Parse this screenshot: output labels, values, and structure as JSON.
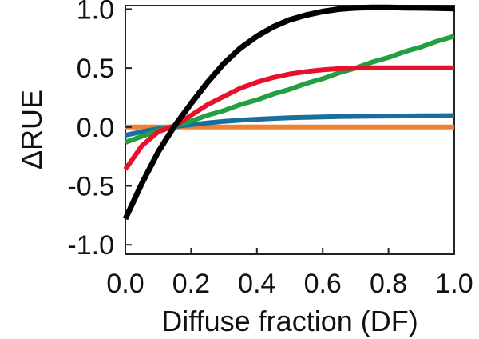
{
  "chart_data": {
    "type": "line",
    "xlabel": "Diffuse fraction (DF)",
    "ylabel": "ΔRUE",
    "xlim": [
      0,
      1
    ],
    "ylim": [
      -1.08,
      1.03
    ],
    "grid": false,
    "x_ticks": [
      "0.0",
      "0.2",
      "0.4",
      "0.6",
      "0.8",
      "1.0"
    ],
    "y_ticks": [
      "1.0",
      "0.5",
      "0.0",
      "-0.5",
      "-1.0"
    ],
    "x": [
      0.0,
      0.05,
      0.1,
      0.15,
      0.2,
      0.25,
      0.3,
      0.35,
      0.4,
      0.45,
      0.5,
      0.55,
      0.6,
      0.65,
      0.7,
      0.75,
      0.8,
      0.85,
      0.9,
      0.95,
      1.0
    ],
    "series": [
      {
        "color": "#f08030",
        "values": [
          0.0,
          0.0,
          0.0,
          0.0,
          0.0,
          0.0,
          0.0,
          0.0,
          0.0,
          0.0,
          0.0,
          0.0,
          0.0,
          0.0,
          0.0,
          0.0,
          0.0,
          0.0,
          0.0,
          0.0,
          0.0
        ]
      },
      {
        "color": "#1a6e9e",
        "values": [
          -0.07,
          -0.04,
          -0.015,
          0.005,
          0.02,
          0.035,
          0.048,
          0.058,
          0.066,
          0.073,
          0.078,
          0.082,
          0.085,
          0.088,
          0.09,
          0.092,
          0.093,
          0.094,
          0.095,
          0.096,
          0.097
        ]
      },
      {
        "color": "#22a040",
        "values": [
          -0.13,
          -0.08,
          -0.03,
          0.01,
          0.05,
          0.1,
          0.14,
          0.19,
          0.23,
          0.28,
          0.32,
          0.37,
          0.41,
          0.46,
          0.5,
          0.55,
          0.59,
          0.64,
          0.68,
          0.73,
          0.77
        ]
      },
      {
        "color": "#e8102a",
        "values": [
          -0.36,
          -0.16,
          -0.04,
          0.01,
          0.1,
          0.19,
          0.26,
          0.33,
          0.38,
          0.42,
          0.45,
          0.47,
          0.485,
          0.495,
          0.5,
          0.502,
          0.503,
          0.503,
          0.503,
          0.503,
          0.503
        ]
      },
      {
        "color": "#000000",
        "values": [
          -0.78,
          -0.48,
          -0.21,
          0.01,
          0.2,
          0.38,
          0.54,
          0.67,
          0.77,
          0.85,
          0.91,
          0.95,
          0.98,
          1.0,
          1.01,
          1.015,
          1.015,
          1.012,
          1.01,
          1.008,
          1.005
        ]
      }
    ]
  }
}
